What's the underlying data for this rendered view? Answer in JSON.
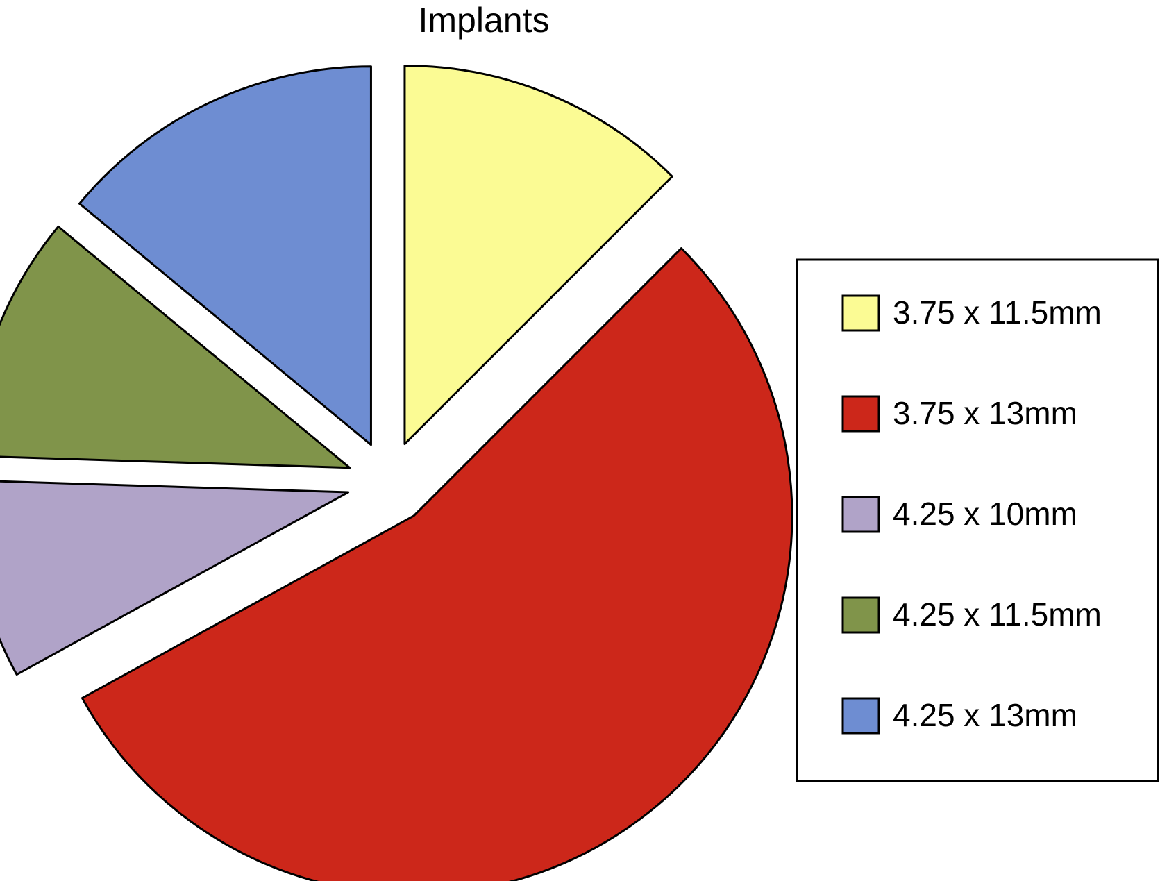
{
  "chart_data": {
    "type": "pie",
    "title": "Implants",
    "legend_position": "right",
    "exploded": true,
    "series": [
      {
        "categories": [
          "3.75 x 11.5mm",
          "3.75 x 13mm",
          "4.25 x 10mm",
          "4.25 x 11.5mm",
          "4.25 x 13mm"
        ],
        "values": [
          12.5,
          54.5,
          8.5,
          10.5,
          14.0
        ],
        "colors": [
          "#FBFB94",
          "#CC271A",
          "#B0A3C8",
          "#80944A",
          "#6E8DD2"
        ]
      }
    ]
  }
}
